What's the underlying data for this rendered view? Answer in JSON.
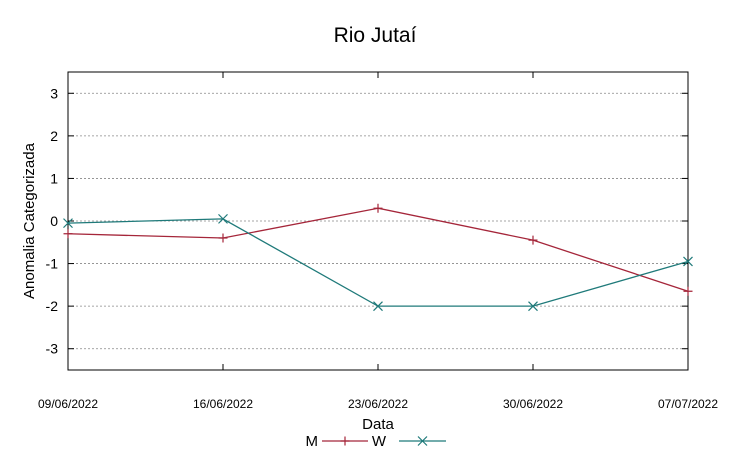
{
  "chart_data": {
    "type": "line",
    "title": "Rio Jutaí",
    "xlabel": "Data",
    "ylabel": "Anomalia Categorizada",
    "categories": [
      "09/06/2022",
      "16/06/2022",
      "23/06/2022",
      "30/06/2022",
      "07/07/2022"
    ],
    "ylim": [
      -3.5,
      3.5
    ],
    "yticks": [
      "3",
      "2",
      "1",
      "0",
      "-1",
      "-2",
      "-3"
    ],
    "grid": true,
    "legend_position": "bottom-center",
    "series": [
      {
        "name": "M",
        "color": "#a5263a",
        "marker": "plus",
        "values": [
          -0.3,
          -0.4,
          0.3,
          -0.45,
          -1.65
        ]
      },
      {
        "name": "W",
        "color": "#1f7a7a",
        "marker": "cross",
        "values": [
          -0.05,
          0.05,
          -2.0,
          -2.0,
          -0.95
        ]
      }
    ]
  }
}
